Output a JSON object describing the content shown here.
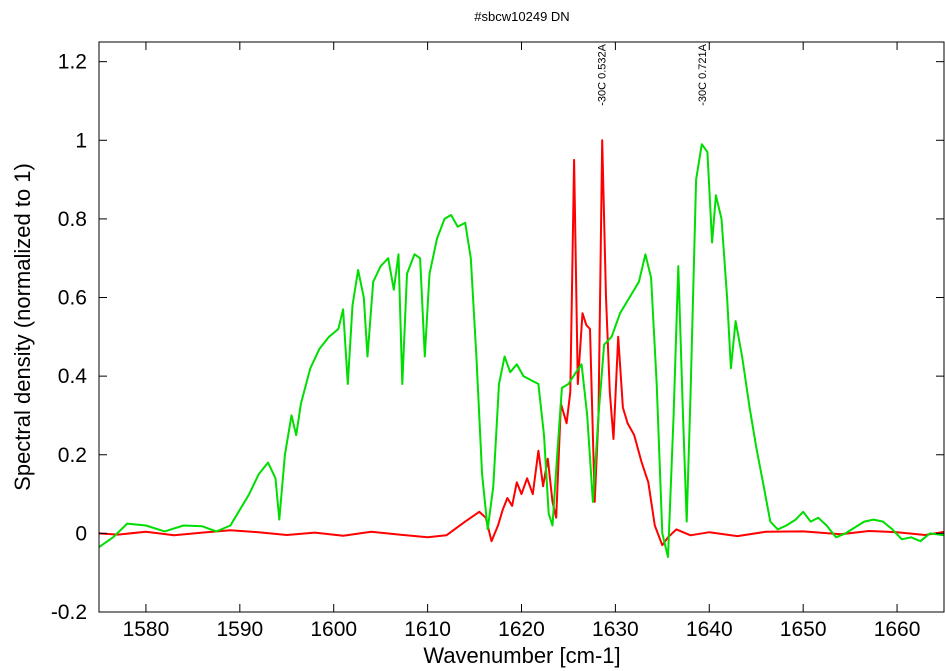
{
  "chart_data": {
    "type": "line",
    "title": "#sbcw10249 DN",
    "xlabel": "Wavenumber [cm-1]",
    "ylabel": "Spectral density (normalized to 1)",
    "xlim": [
      1575,
      1665
    ],
    "ylim": [
      -0.2,
      1.25
    ],
    "x_ticks": [
      1580,
      1590,
      1600,
      1610,
      1620,
      1630,
      1640,
      1650,
      1660
    ],
    "y_ticks": [
      -0.2,
      0,
      0.2,
      0.4,
      0.6,
      0.8,
      1,
      1.2
    ],
    "y_tick_labels": [
      "-0.2",
      "0",
      "0.2",
      "0.4",
      "0.6",
      "0.8",
      "1",
      "1.2"
    ],
    "grid": false,
    "legend": "none",
    "annotations": [
      {
        "text": "-30C 0.532A",
        "x": 1628.5
      },
      {
        "text": "-30C 0.721A",
        "x": 1639.2
      }
    ],
    "series": [
      {
        "color": "#ff0000",
        "points": [
          [
            1575,
            0.0
          ],
          [
            1577,
            -0.003
          ],
          [
            1580,
            0.004
          ],
          [
            1583,
            -0.005
          ],
          [
            1586,
            0.002
          ],
          [
            1589,
            0.008
          ],
          [
            1592,
            0.003
          ],
          [
            1595,
            -0.004
          ],
          [
            1598,
            0.002
          ],
          [
            1601,
            -0.006
          ],
          [
            1604,
            0.004
          ],
          [
            1607,
            -0.003
          ],
          [
            1610,
            -0.01
          ],
          [
            1612,
            -0.005
          ],
          [
            1614,
            0.03
          ],
          [
            1615.5,
            0.055
          ],
          [
            1616.2,
            0.04
          ],
          [
            1616.8,
            -0.02
          ],
          [
            1617.5,
            0.02
          ],
          [
            1618,
            0.06
          ],
          [
            1618.5,
            0.09
          ],
          [
            1619,
            0.07
          ],
          [
            1619.5,
            0.13
          ],
          [
            1620,
            0.1
          ],
          [
            1620.6,
            0.14
          ],
          [
            1621.2,
            0.1
          ],
          [
            1621.8,
            0.21
          ],
          [
            1622.3,
            0.12
          ],
          [
            1622.8,
            0.19
          ],
          [
            1623.3,
            0.08
          ],
          [
            1623.7,
            0.04
          ],
          [
            1624.2,
            0.33
          ],
          [
            1624.8,
            0.28
          ],
          [
            1625.2,
            0.36
          ],
          [
            1625.6,
            0.95
          ],
          [
            1626.0,
            0.38
          ],
          [
            1626.5,
            0.56
          ],
          [
            1626.9,
            0.53
          ],
          [
            1627.3,
            0.52
          ],
          [
            1627.8,
            0.08
          ],
          [
            1628.2,
            0.3
          ],
          [
            1628.6,
            1.0
          ],
          [
            1629.0,
            0.6
          ],
          [
            1629.4,
            0.36
          ],
          [
            1629.8,
            0.24
          ],
          [
            1630.3,
            0.5
          ],
          [
            1630.8,
            0.32
          ],
          [
            1631.3,
            0.28
          ],
          [
            1632.0,
            0.25
          ],
          [
            1632.8,
            0.18
          ],
          [
            1633.5,
            0.13
          ],
          [
            1634.2,
            0.02
          ],
          [
            1635.0,
            -0.03
          ],
          [
            1635.6,
            -0.01
          ],
          [
            1636.5,
            0.01
          ],
          [
            1638,
            -0.005
          ],
          [
            1640,
            0.003
          ],
          [
            1643,
            -0.007
          ],
          [
            1646,
            0.004
          ],
          [
            1650,
            0.005
          ],
          [
            1654,
            -0.002
          ],
          [
            1657,
            0.006
          ],
          [
            1660,
            0.003
          ],
          [
            1663,
            -0.004
          ],
          [
            1665,
            0.004
          ]
        ]
      },
      {
        "color": "#00dd00",
        "points": [
          [
            1575,
            -0.035
          ],
          [
            1576.5,
            -0.01
          ],
          [
            1578,
            0.025
          ],
          [
            1580,
            0.02
          ],
          [
            1582,
            0.005
          ],
          [
            1584,
            0.02
          ],
          [
            1586,
            0.018
          ],
          [
            1587.5,
            0.005
          ],
          [
            1589,
            0.02
          ],
          [
            1590,
            0.06
          ],
          [
            1591,
            0.1
          ],
          [
            1592,
            0.15
          ],
          [
            1593,
            0.18
          ],
          [
            1593.8,
            0.14
          ],
          [
            1594.2,
            0.035
          ],
          [
            1594.8,
            0.2
          ],
          [
            1595.5,
            0.3
          ],
          [
            1596.0,
            0.25
          ],
          [
            1596.5,
            0.33
          ],
          [
            1597.5,
            0.42
          ],
          [
            1598.5,
            0.47
          ],
          [
            1599.5,
            0.5
          ],
          [
            1600.5,
            0.52
          ],
          [
            1601,
            0.57
          ],
          [
            1601.5,
            0.38
          ],
          [
            1602,
            0.58
          ],
          [
            1602.6,
            0.67
          ],
          [
            1603.2,
            0.6
          ],
          [
            1603.6,
            0.45
          ],
          [
            1604.2,
            0.64
          ],
          [
            1605,
            0.68
          ],
          [
            1605.8,
            0.7
          ],
          [
            1606.4,
            0.62
          ],
          [
            1606.9,
            0.71
          ],
          [
            1607.3,
            0.38
          ],
          [
            1607.8,
            0.66
          ],
          [
            1608.6,
            0.71
          ],
          [
            1609.2,
            0.7
          ],
          [
            1609.7,
            0.45
          ],
          [
            1610.2,
            0.66
          ],
          [
            1611,
            0.75
          ],
          [
            1611.8,
            0.8
          ],
          [
            1612.5,
            0.81
          ],
          [
            1613.2,
            0.78
          ],
          [
            1614.0,
            0.79
          ],
          [
            1614.6,
            0.7
          ],
          [
            1615.2,
            0.45
          ],
          [
            1615.8,
            0.15
          ],
          [
            1616.4,
            0.01
          ],
          [
            1617.0,
            0.12
          ],
          [
            1617.6,
            0.38
          ],
          [
            1618.2,
            0.45
          ],
          [
            1618.8,
            0.41
          ],
          [
            1619.5,
            0.43
          ],
          [
            1620.2,
            0.4
          ],
          [
            1621.0,
            0.39
          ],
          [
            1621.8,
            0.38
          ],
          [
            1622.4,
            0.25
          ],
          [
            1622.9,
            0.05
          ],
          [
            1623.3,
            0.02
          ],
          [
            1623.8,
            0.2
          ],
          [
            1624.3,
            0.37
          ],
          [
            1625.0,
            0.38
          ],
          [
            1625.8,
            0.41
          ],
          [
            1626.4,
            0.43
          ],
          [
            1627.0,
            0.3
          ],
          [
            1627.6,
            0.08
          ],
          [
            1628.2,
            0.3
          ],
          [
            1628.8,
            0.48
          ],
          [
            1629.6,
            0.5
          ],
          [
            1630.5,
            0.56
          ],
          [
            1631.5,
            0.6
          ],
          [
            1632.5,
            0.64
          ],
          [
            1633.2,
            0.71
          ],
          [
            1633.8,
            0.65
          ],
          [
            1634.4,
            0.38
          ],
          [
            1635.0,
            0.0
          ],
          [
            1635.6,
            -0.06
          ],
          [
            1636.2,
            0.3
          ],
          [
            1636.7,
            0.68
          ],
          [
            1637.2,
            0.3
          ],
          [
            1637.6,
            0.03
          ],
          [
            1638.0,
            0.35
          ],
          [
            1638.6,
            0.9
          ],
          [
            1639.2,
            0.99
          ],
          [
            1639.8,
            0.97
          ],
          [
            1640.3,
            0.74
          ],
          [
            1640.7,
            0.86
          ],
          [
            1641.3,
            0.8
          ],
          [
            1641.9,
            0.6
          ],
          [
            1642.3,
            0.42
          ],
          [
            1642.8,
            0.54
          ],
          [
            1643.5,
            0.45
          ],
          [
            1644.3,
            0.32
          ],
          [
            1645.0,
            0.22
          ],
          [
            1645.8,
            0.12
          ],
          [
            1646.5,
            0.03
          ],
          [
            1647.3,
            0.01
          ],
          [
            1648.2,
            0.02
          ],
          [
            1649.2,
            0.035
          ],
          [
            1650.0,
            0.055
          ],
          [
            1650.8,
            0.03
          ],
          [
            1651.6,
            0.04
          ],
          [
            1652.5,
            0.02
          ],
          [
            1653.5,
            -0.01
          ],
          [
            1654.5,
            0.0
          ],
          [
            1655.5,
            0.015
          ],
          [
            1656.5,
            0.03
          ],
          [
            1657.5,
            0.035
          ],
          [
            1658.5,
            0.03
          ],
          [
            1659.5,
            0.01
          ],
          [
            1660.5,
            -0.015
          ],
          [
            1661.5,
            -0.01
          ],
          [
            1662.5,
            -0.02
          ],
          [
            1663.5,
            0.0
          ],
          [
            1665,
            -0.005
          ]
        ]
      }
    ]
  }
}
